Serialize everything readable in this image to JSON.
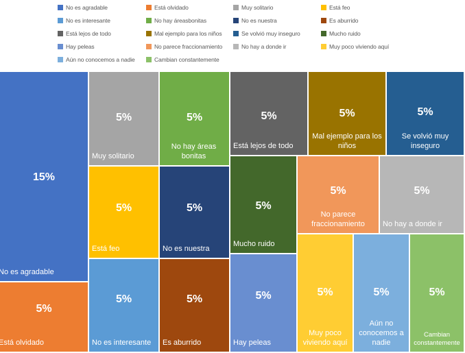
{
  "chart_data": {
    "type": "treemap",
    "title": "",
    "legend_position": "top",
    "categories": [
      "No es agradable",
      "Está olvidado",
      "Muy solitario",
      "Está feo",
      "No es interesante",
      "No hay áreasbonitas",
      "No es nuestra",
      "Es aburrido",
      "Está lejos de todo",
      "Mal ejemplo para los niños",
      "Se volvió muy inseguro",
      "Mucho ruido",
      "Hay peleas",
      "No parece fraccionamiento",
      "No hay a donde ir",
      "Muy poco viviendo aquí",
      "Aún no conocemos a nadie",
      "Cambian constantemente"
    ],
    "series": [
      {
        "tile_label": "No es agradable",
        "value": 15,
        "value_label": "15%",
        "color": "#4472C4"
      },
      {
        "tile_label": "Está olvidado",
        "value": 5,
        "value_label": "5%",
        "color": "#ED7D31"
      },
      {
        "tile_label": "Muy solitario",
        "value": 5,
        "value_label": "5%",
        "color": "#A5A5A5"
      },
      {
        "tile_label": "Está feo",
        "value": 5,
        "value_label": "5%",
        "color": "#FFC000"
      },
      {
        "tile_label": "No es interesante",
        "value": 5,
        "value_label": "5%",
        "color": "#5B9BD5"
      },
      {
        "tile_label": "No hay áreas bonitas",
        "value": 5,
        "value_label": "5%",
        "color": "#70AD47"
      },
      {
        "tile_label": "No es nuestra",
        "value": 5,
        "value_label": "5%",
        "color": "#264478"
      },
      {
        "tile_label": "Es aburrido",
        "value": 5,
        "value_label": "5%",
        "color": "#9E480E"
      },
      {
        "tile_label": "Está lejos de todo",
        "value": 5,
        "value_label": "5%",
        "color": "#636363"
      },
      {
        "tile_label": "Mal ejemplo para los niños",
        "value": 5,
        "value_label": "5%",
        "color": "#997300"
      },
      {
        "tile_label": "Se volvió muy inseguro",
        "value": 5,
        "value_label": "5%",
        "color": "#255E91"
      },
      {
        "tile_label": "Mucho ruido",
        "value": 5,
        "value_label": "5%",
        "color": "#43682B"
      },
      {
        "tile_label": "Hay peleas",
        "value": 5,
        "value_label": "5%",
        "color": "#698ED0"
      },
      {
        "tile_label": "No parece fraccionamiento",
        "value": 5,
        "value_label": "5%",
        "color": "#F1975A"
      },
      {
        "tile_label": "No hay a donde ir",
        "value": 5,
        "value_label": "5%",
        "color": "#B7B7B7"
      },
      {
        "tile_label": "Muy poco viviendo aquí",
        "value": 5,
        "value_label": "5%",
        "color": "#FFCD33"
      },
      {
        "tile_label": "Aún no conocemos a nadie",
        "value": 5,
        "value_label": "5%",
        "color": "#7CAFDD"
      },
      {
        "tile_label": "Cambian constantemente",
        "value": 5,
        "value_label": "5%",
        "color": "#8CC168"
      }
    ]
  }
}
